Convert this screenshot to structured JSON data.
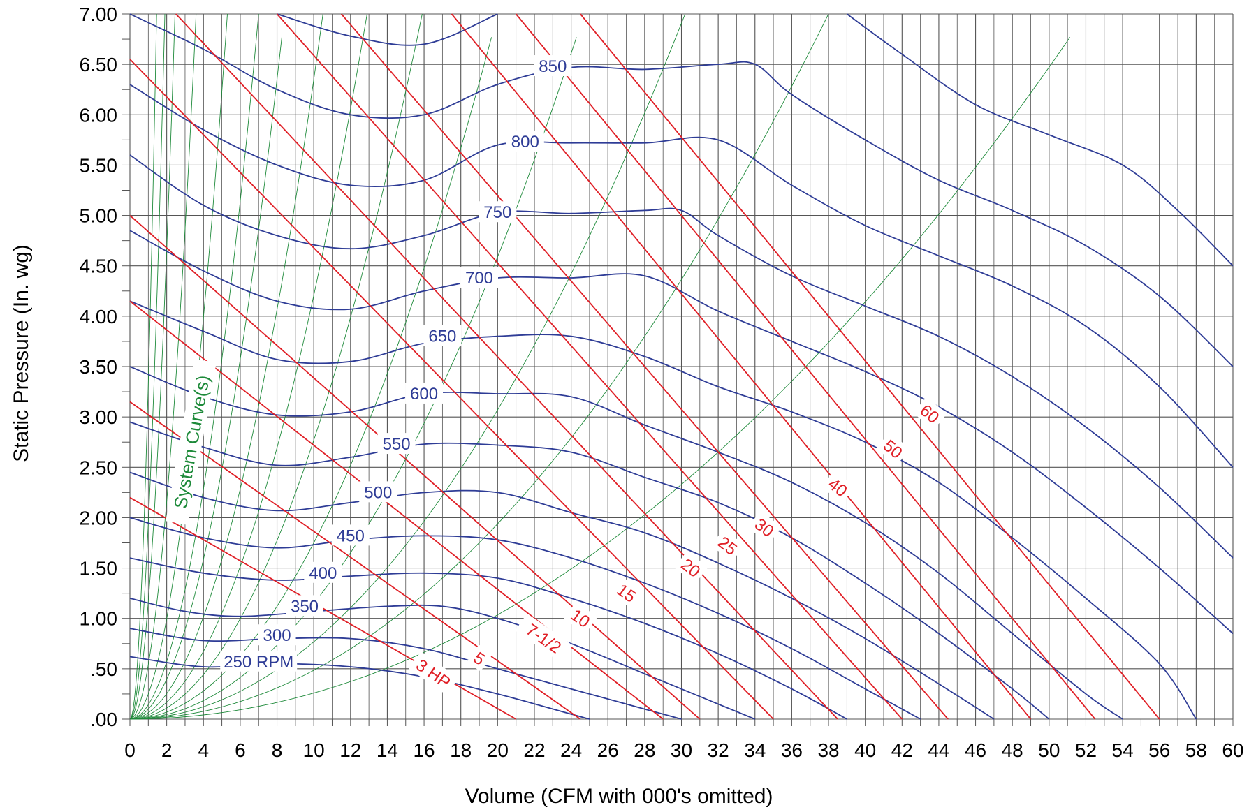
{
  "chart_data": {
    "type": "line",
    "title": "",
    "xlabel": "Volume (CFM with 000's omitted)",
    "ylabel": "Static Pressure (In. wg)",
    "xlim": [
      0,
      60
    ],
    "ylim": [
      0,
      7
    ],
    "x_ticks": [
      "0",
      "2",
      "4",
      "6",
      "8",
      "10",
      "12",
      "14",
      "16",
      "18",
      "20",
      "22",
      "24",
      "26",
      "28",
      "30",
      "32",
      "34",
      "36",
      "38",
      "40",
      "42",
      "44",
      "46",
      "48",
      "50",
      "52",
      "54",
      "56",
      "58",
      "60"
    ],
    "y_ticks": [
      {
        "value": 0,
        "label": ".00"
      },
      {
        "value": 0.5,
        "label": ".50"
      },
      {
        "value": 1.0,
        "label": "1.00"
      },
      {
        "value": 1.5,
        "label": "1.50"
      },
      {
        "value": 2.0,
        "label": "2.00"
      },
      {
        "value": 2.5,
        "label": "2.50"
      },
      {
        "value": 3.0,
        "label": "3.00"
      },
      {
        "value": 3.5,
        "label": "3.50"
      },
      {
        "value": 4.0,
        "label": "4.00"
      },
      {
        "value": 4.5,
        "label": "4.50"
      },
      {
        "value": 5.0,
        "label": "5.00"
      },
      {
        "value": 5.5,
        "label": "5.50"
      },
      {
        "value": 6.0,
        "label": "6.00"
      },
      {
        "value": 6.5,
        "label": "6.50"
      },
      {
        "value": 7.0,
        "label": "7.00"
      }
    ],
    "grid": true,
    "colors": {
      "rpm": "#2e3c96",
      "hp": "#e01f26",
      "system": "#1e8a3a",
      "grid": "#4a4a4a"
    },
    "rpm_series": [
      {
        "name": "250 RPM",
        "label": "250 RPM",
        "label_at": [
          7,
          0.57
        ],
        "points": [
          [
            0,
            0.62
          ],
          [
            4,
            0.52
          ],
          [
            8,
            0.55
          ],
          [
            12,
            0.52
          ],
          [
            16,
            0.42
          ],
          [
            20,
            0.25
          ],
          [
            24,
            0.05
          ],
          [
            25,
            0
          ]
        ]
      },
      {
        "name": "300",
        "label": "300",
        "label_at": [
          8,
          0.83
        ],
        "points": [
          [
            0,
            0.9
          ],
          [
            4,
            0.78
          ],
          [
            8,
            0.8
          ],
          [
            12,
            0.8
          ],
          [
            16,
            0.7
          ],
          [
            20,
            0.5
          ],
          [
            24,
            0.3
          ],
          [
            28,
            0.1
          ],
          [
            30,
            0
          ]
        ]
      },
      {
        "name": "350",
        "label": "350",
        "label_at": [
          9.5,
          1.12
        ],
        "points": [
          [
            0,
            1.2
          ],
          [
            3,
            1.07
          ],
          [
            6,
            1.02
          ],
          [
            10,
            1.07
          ],
          [
            14,
            1.12
          ],
          [
            17,
            1.12
          ],
          [
            20,
            1.0
          ],
          [
            24,
            0.75
          ],
          [
            28,
            0.45
          ],
          [
            32,
            0.15
          ],
          [
            34,
            0
          ]
        ]
      },
      {
        "name": "400",
        "label": "400",
        "label_at": [
          10.5,
          1.45
        ],
        "points": [
          [
            0,
            1.6
          ],
          [
            4,
            1.45
          ],
          [
            8,
            1.38
          ],
          [
            12,
            1.42
          ],
          [
            16,
            1.45
          ],
          [
            20,
            1.4
          ],
          [
            24,
            1.2
          ],
          [
            28,
            0.95
          ],
          [
            32,
            0.65
          ],
          [
            36,
            0.3
          ],
          [
            39,
            0
          ]
        ]
      },
      {
        "name": "450",
        "label": "450",
        "label_at": [
          12,
          1.82
        ],
        "points": [
          [
            0,
            2.0
          ],
          [
            4,
            1.8
          ],
          [
            8,
            1.7
          ],
          [
            12,
            1.78
          ],
          [
            16,
            1.82
          ],
          [
            20,
            1.78
          ],
          [
            24,
            1.6
          ],
          [
            28,
            1.35
          ],
          [
            32,
            1.05
          ],
          [
            36,
            0.7
          ],
          [
            40,
            0.3
          ],
          [
            43,
            0
          ]
        ]
      },
      {
        "name": "500",
        "label": "500",
        "label_at": [
          13.5,
          2.25
        ],
        "points": [
          [
            0,
            2.45
          ],
          [
            4,
            2.2
          ],
          [
            8,
            2.07
          ],
          [
            12,
            2.15
          ],
          [
            16,
            2.25
          ],
          [
            20,
            2.25
          ],
          [
            24,
            2.05
          ],
          [
            28,
            1.85
          ],
          [
            32,
            1.55
          ],
          [
            36,
            1.2
          ],
          [
            40,
            0.8
          ],
          [
            44,
            0.35
          ],
          [
            47,
            0
          ]
        ]
      },
      {
        "name": "550",
        "label": "550",
        "label_at": [
          14.5,
          2.73
        ],
        "points": [
          [
            0,
            2.95
          ],
          [
            4,
            2.7
          ],
          [
            8,
            2.52
          ],
          [
            12,
            2.6
          ],
          [
            16,
            2.73
          ],
          [
            20,
            2.72
          ],
          [
            24,
            2.65
          ],
          [
            28,
            2.4
          ],
          [
            32,
            2.15
          ],
          [
            36,
            1.8
          ],
          [
            40,
            1.35
          ],
          [
            44,
            0.85
          ],
          [
            48,
            0.3
          ],
          [
            50,
            0
          ]
        ]
      },
      {
        "name": "600",
        "label": "600",
        "label_at": [
          16,
          3.23
        ],
        "points": [
          [
            0,
            3.5
          ],
          [
            4,
            3.2
          ],
          [
            8,
            3.02
          ],
          [
            12,
            3.05
          ],
          [
            16,
            3.23
          ],
          [
            20,
            3.23
          ],
          [
            24,
            3.2
          ],
          [
            28,
            2.92
          ],
          [
            32,
            2.65
          ],
          [
            36,
            2.35
          ],
          [
            40,
            1.95
          ],
          [
            44,
            1.45
          ],
          [
            48,
            0.85
          ],
          [
            52,
            0.25
          ],
          [
            54,
            0
          ]
        ]
      },
      {
        "name": "650",
        "label": "650",
        "label_at": [
          17,
          3.8
        ],
        "points": [
          [
            0,
            4.15
          ],
          [
            4,
            3.85
          ],
          [
            8,
            3.57
          ],
          [
            12,
            3.55
          ],
          [
            16,
            3.73
          ],
          [
            20,
            3.8
          ],
          [
            24,
            3.8
          ],
          [
            28,
            3.6
          ],
          [
            32,
            3.3
          ],
          [
            36,
            3.05
          ],
          [
            40,
            2.75
          ],
          [
            44,
            2.35
          ],
          [
            48,
            1.8
          ],
          [
            52,
            1.2
          ],
          [
            56,
            0.55
          ],
          [
            58,
            0
          ]
        ]
      },
      {
        "name": "700",
        "label": "700",
        "label_at": [
          19,
          4.38
        ],
        "points": [
          [
            0,
            4.85
          ],
          [
            4,
            4.45
          ],
          [
            8,
            4.15
          ],
          [
            12,
            4.07
          ],
          [
            16,
            4.25
          ],
          [
            20,
            4.38
          ],
          [
            24,
            4.38
          ],
          [
            28,
            4.4
          ],
          [
            32,
            4.05
          ],
          [
            36,
            3.75
          ],
          [
            40,
            3.45
          ],
          [
            44,
            3.1
          ],
          [
            48,
            2.65
          ],
          [
            52,
            2.1
          ],
          [
            56,
            1.5
          ],
          [
            60,
            0.85
          ]
        ]
      },
      {
        "name": "750",
        "label": "750",
        "label_at": [
          20,
          5.03
        ],
        "points": [
          [
            0,
            5.6
          ],
          [
            4,
            5.1
          ],
          [
            8,
            4.8
          ],
          [
            12,
            4.67
          ],
          [
            16,
            4.8
          ],
          [
            20,
            5.03
          ],
          [
            24,
            5.02
          ],
          [
            28,
            5.05
          ],
          [
            30,
            5.05
          ],
          [
            32,
            4.8
          ],
          [
            36,
            4.4
          ],
          [
            40,
            4.1
          ],
          [
            44,
            3.8
          ],
          [
            48,
            3.4
          ],
          [
            52,
            2.9
          ],
          [
            56,
            2.3
          ],
          [
            60,
            1.6
          ]
        ]
      },
      {
        "name": "800",
        "label": "800",
        "label_at": [
          21.5,
          5.73
        ],
        "points": [
          [
            0,
            6.3
          ],
          [
            4,
            5.85
          ],
          [
            8,
            5.5
          ],
          [
            12,
            5.3
          ],
          [
            16,
            5.35
          ],
          [
            20,
            5.7
          ],
          [
            24,
            5.72
          ],
          [
            28,
            5.72
          ],
          [
            32,
            5.75
          ],
          [
            36,
            5.3
          ],
          [
            40,
            4.9
          ],
          [
            44,
            4.6
          ],
          [
            48,
            4.3
          ],
          [
            52,
            3.9
          ],
          [
            56,
            3.3
          ],
          [
            60,
            2.5
          ]
        ]
      },
      {
        "name": "850",
        "label": "850",
        "label_at": [
          23,
          6.48
        ],
        "points": [
          [
            0,
            7.0
          ],
          [
            4,
            6.65
          ],
          [
            8,
            6.25
          ],
          [
            12,
            6.0
          ],
          [
            16,
            6.0
          ],
          [
            20,
            6.3
          ],
          [
            24,
            6.47
          ],
          [
            28,
            6.45
          ],
          [
            32,
            6.5
          ],
          [
            34,
            6.5
          ],
          [
            36,
            6.2
          ],
          [
            40,
            5.75
          ],
          [
            44,
            5.35
          ],
          [
            48,
            5.05
          ],
          [
            52,
            4.7
          ],
          [
            56,
            4.2
          ],
          [
            60,
            3.5
          ]
        ]
      },
      {
        "name": "900",
        "label": "",
        "label_at": null,
        "points": [
          [
            8,
            7.0
          ],
          [
            12,
            6.78
          ],
          [
            16,
            6.7
          ],
          [
            20,
            7.0
          ]
        ]
      },
      {
        "name": "upper-1",
        "label": "",
        "label_at": null,
        "points": [
          [
            39,
            7.0
          ],
          [
            42,
            6.6
          ],
          [
            46,
            6.1
          ],
          [
            50,
            5.8
          ],
          [
            54,
            5.5
          ],
          [
            57,
            5.05
          ],
          [
            60,
            4.5
          ]
        ]
      }
    ],
    "hp_lines": [
      {
        "name": "3 HP",
        "label": "3 HP",
        "label_at": [
          16.5,
          0.45
        ],
        "angle": 35,
        "points": [
          [
            0,
            2.2
          ],
          [
            21,
            0
          ]
        ]
      },
      {
        "name": "5",
        "label": "5",
        "label_at": [
          19,
          0.6
        ],
        "angle": 35,
        "points": [
          [
            0,
            3.15
          ],
          [
            24.5,
            0
          ]
        ]
      },
      {
        "name": "7-1/2",
        "label": "7-1/2",
        "label_at": [
          22.5,
          0.8
        ],
        "angle": 35,
        "points": [
          [
            0,
            4.15
          ],
          [
            29,
            0
          ]
        ]
      },
      {
        "name": "10",
        "label": "10",
        "label_at": [
          24.5,
          1.0
        ],
        "angle": 35,
        "points": [
          [
            0,
            5.0
          ],
          [
            31,
            0
          ]
        ]
      },
      {
        "name": "15",
        "label": "15",
        "label_at": [
          27,
          1.25
        ],
        "angle": 35,
        "points": [
          [
            0,
            6.55
          ],
          [
            35,
            0
          ]
        ]
      },
      {
        "name": "20",
        "label": "20",
        "label_at": [
          30.5,
          1.5
        ],
        "angle": 38,
        "points": [
          [
            2.5,
            7.0
          ],
          [
            38.5,
            0
          ]
        ]
      },
      {
        "name": "25",
        "label": "25",
        "label_at": [
          32.5,
          1.72
        ],
        "angle": 38,
        "points": [
          [
            8,
            7.0
          ],
          [
            42,
            0
          ]
        ]
      },
      {
        "name": "30",
        "label": "30",
        "label_at": [
          34.5,
          1.9
        ],
        "angle": 38,
        "points": [
          [
            11.5,
            7.0
          ],
          [
            44.5,
            0
          ]
        ]
      },
      {
        "name": "40",
        "label": "40",
        "label_at": [
          38.5,
          2.3
        ],
        "angle": 38,
        "points": [
          [
            17.5,
            7.0
          ],
          [
            49,
            0
          ]
        ]
      },
      {
        "name": "50",
        "label": "50",
        "label_at": [
          41.5,
          2.68
        ],
        "angle": 40,
        "points": [
          [
            21,
            7.0
          ],
          [
            52.5,
            0
          ]
        ]
      },
      {
        "name": "60",
        "label": "60",
        "label_at": [
          43.5,
          3.03
        ],
        "angle": 40,
        "points": [
          [
            24.5,
            7.0
          ],
          [
            56,
            0
          ]
        ]
      }
    ],
    "system_curves": [
      1.45,
      1.9,
      2.45,
      3.6,
      5.3,
      7.0,
      8.4,
      10.5,
      12.9,
      15.9,
      20.0,
      24.7,
      30.2,
      38.0,
      52.0
    ],
    "system_label": "System Curve(s)"
  }
}
